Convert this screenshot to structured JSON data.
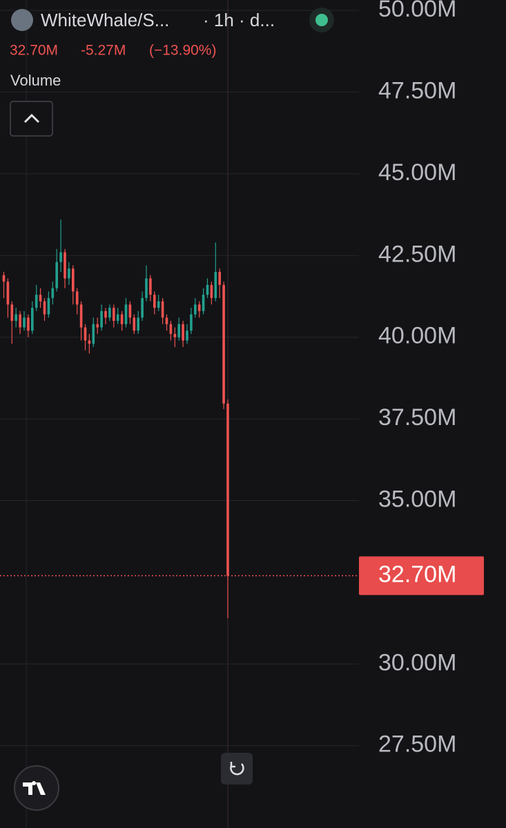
{
  "chart_data": {
    "type": "candlestick",
    "header": {
      "symbol": "WhiteWhale/S...",
      "interval": "· 1h · d...",
      "last": "32.70M",
      "change": "-5.27M",
      "change_pct": "(−13.90%)",
      "study": "Volume"
    },
    "up_color": "#22a08e",
    "down_color": "#ef5350",
    "series": {
      "open": [
        41.9,
        41.7,
        41.0,
        40.5,
        40.7,
        40.3,
        40.6,
        40.2,
        40.9,
        41.3,
        41.1,
        40.7,
        41.2,
        41.5,
        42.3,
        42.6,
        41.8,
        42.1,
        41.4,
        41.0,
        40.3,
        39.9,
        39.8,
        40.4,
        40.3,
        40.8,
        40.6,
        40.9,
        40.5,
        40.7,
        40.4,
        41.0,
        40.6,
        40.2,
        40.6,
        41.2,
        41.8,
        41.3,
        40.9,
        41.1,
        40.6,
        40.4,
        40.1,
        40.0,
        40.4,
        39.9,
        40.2,
        40.7,
        41.0,
        40.8,
        41.3,
        41.6,
        41.2,
        42.0,
        41.6,
        37.97
      ],
      "high": [
        42.0,
        41.8,
        41.1,
        40.9,
        40.8,
        40.8,
        40.7,
        41.1,
        41.6,
        41.5,
        41.2,
        41.4,
        41.7,
        42.7,
        43.6,
        42.7,
        42.3,
        42.2,
        41.5,
        41.1,
        40.4,
        40.1,
        40.6,
        40.6,
        41.0,
        40.9,
        41.0,
        41.0,
        40.9,
        40.8,
        41.2,
        41.1,
        40.7,
        40.8,
        41.4,
        42.2,
        41.9,
        41.4,
        41.3,
        41.2,
        40.7,
        40.5,
        40.3,
        40.6,
        40.5,
        40.4,
        40.9,
        41.2,
        41.1,
        41.5,
        41.8,
        41.7,
        42.9,
        42.1,
        41.7,
        38.1
      ],
      "low": [
        41.2,
        40.6,
        39.8,
        40.3,
        40.1,
        40.2,
        40.0,
        40.1,
        40.8,
        40.9,
        40.5,
        40.6,
        41.0,
        41.4,
        42.0,
        41.5,
        41.6,
        41.0,
        40.7,
        39.9,
        39.6,
        39.5,
        39.7,
        40.1,
        40.2,
        40.4,
        40.5,
        40.3,
        40.4,
        40.2,
        40.3,
        40.4,
        40.1,
        40.1,
        40.5,
        41.1,
        41.1,
        40.7,
        40.8,
        40.4,
        40.2,
        39.9,
        39.7,
        39.9,
        39.7,
        39.8,
        40.1,
        40.6,
        40.6,
        40.7,
        41.2,
        41.0,
        41.1,
        41.2,
        37.8,
        31.4
      ],
      "close": [
        41.7,
        41.0,
        40.5,
        40.7,
        40.3,
        40.6,
        40.2,
        40.9,
        41.3,
        41.1,
        40.7,
        41.2,
        41.5,
        42.3,
        42.6,
        41.8,
        42.1,
        41.4,
        41.0,
        40.3,
        39.9,
        39.8,
        40.4,
        40.3,
        40.8,
        40.6,
        40.9,
        40.5,
        40.7,
        40.4,
        41.0,
        40.6,
        40.2,
        40.6,
        41.2,
        41.8,
        41.3,
        40.9,
        41.1,
        40.6,
        40.4,
        40.1,
        40.0,
        40.4,
        39.9,
        40.2,
        40.7,
        41.0,
        40.8,
        41.3,
        41.6,
        41.2,
        42.0,
        41.6,
        37.97,
        32.7
      ]
    },
    "ylim": [
      24.98,
      50.32
    ],
    "yticks": [
      {
        "value": 50,
        "label": "50.00M"
      },
      {
        "value": 47.5,
        "label": "47.50M"
      },
      {
        "value": 45,
        "label": "45.00M"
      },
      {
        "value": 42.5,
        "label": "42.50M"
      },
      {
        "value": 40,
        "label": "40.00M"
      },
      {
        "value": 37.5,
        "label": "37.50M"
      },
      {
        "value": 35,
        "label": "35.00M"
      },
      {
        "value": 30,
        "label": "30.00M"
      },
      {
        "value": 27.5,
        "label": "27.50M"
      }
    ],
    "last_price": {
      "value": 32.7,
      "label": "32.70M"
    },
    "grid": true
  }
}
